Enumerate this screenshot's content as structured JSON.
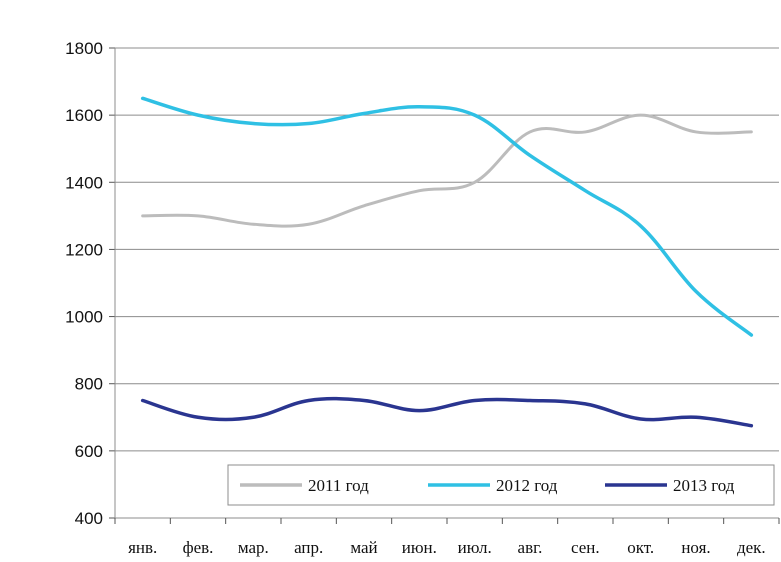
{
  "chart_data": {
    "type": "line",
    "title": "",
    "xlabel": "",
    "ylabel": "",
    "categories": [
      "янв.",
      "фев.",
      "мар.",
      "апр.",
      "май",
      "июн.",
      "июл.",
      "авг.",
      "сен.",
      "окт.",
      "ноя.",
      "дек."
    ],
    "ylim": [
      400,
      1800
    ],
    "yticks": [
      400,
      600,
      800,
      1000,
      1200,
      1400,
      1600,
      1800
    ],
    "grid": "horizontal",
    "legend_position": "bottom-right",
    "series": [
      {
        "name": "2011 год",
        "color": "#bcbcbc",
        "values": [
          1300,
          1300,
          1275,
          1275,
          1330,
          1375,
          1400,
          1550,
          1550,
          1600,
          1550,
          1550
        ]
      },
      {
        "name": "2012 год",
        "color": "#2fc0e4",
        "values": [
          1650,
          1600,
          1575,
          1575,
          1605,
          1625,
          1600,
          1480,
          1375,
          1270,
          1075,
          945
        ]
      },
      {
        "name": "2013 год",
        "color": "#2a3590",
        "values": [
          750,
          700,
          700,
          750,
          750,
          720,
          750,
          750,
          740,
          695,
          700,
          675
        ]
      }
    ]
  }
}
